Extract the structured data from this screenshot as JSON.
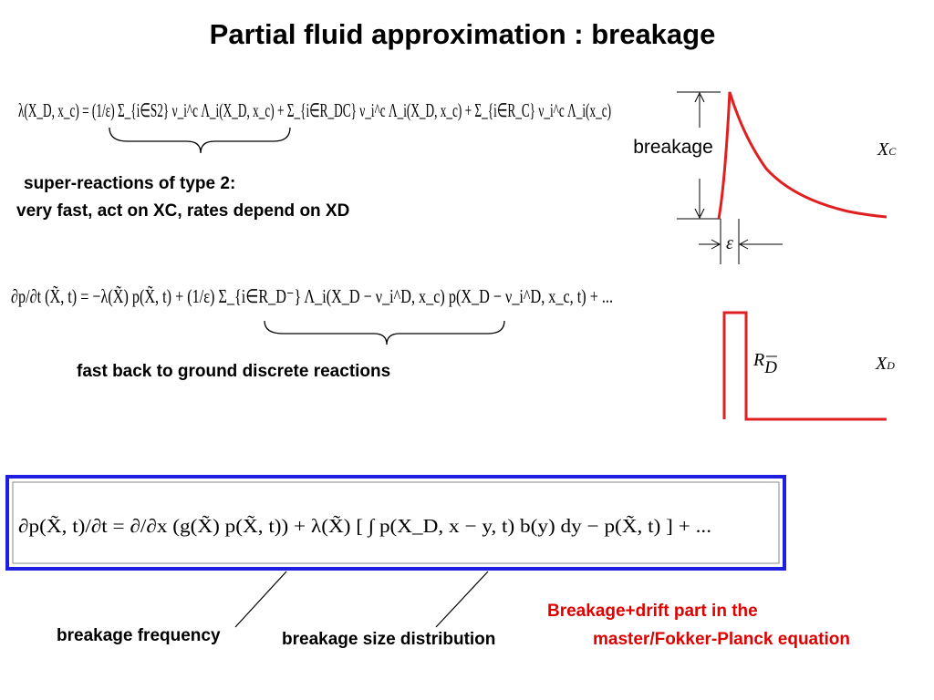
{
  "title": "Partial fluid approximation : breakage",
  "equations": [
    "λ(X_D, x_c) = (1/ε) Σ_{i∈S2} ν_i^c Λ_i(X_D, x_c) + Σ_{i∈R_DC} ν_i^c Λ_i(X_D, x_c) + Σ_{i∈R_C} ν_i^c Λ_i(x_c)",
    "∂p/∂t (X̃, t) = −λ(X̃) p(X̃, t) + (1/ε) Σ_{i∈R_D⁻} Λ_i(X_D − ν_i^D, x_c) p(X_D − ν_i^D, x_c, t) + ...",
    "∂p(X̃, t)/∂t = ∂/∂x (g(X̃) p(X̃, t)) + λ(X̃) [ ∫ p(X_D, x − y, t) b(y) dy − p(X̃, t) ] + ..."
  ],
  "annotations": {
    "type2_line1": "super-reactions of type 2:",
    "type2_line2": "very fast, act on XC, rates depend on XD",
    "ground": "fast back to ground discrete reactions",
    "frequency": "breakage frequency",
    "size": "breakage size distribution",
    "red_line1": "Breakage+drift part in the",
    "red_line2": "master/Fokker-Planck equation"
  },
  "diagram": {
    "breakage": "breakage",
    "epsilon": "ε",
    "xc_base": "X",
    "xc_sub": "C",
    "rd_base": "R",
    "rd_sub": "D",
    "xd_base": "X",
    "xd_sub": "D"
  }
}
